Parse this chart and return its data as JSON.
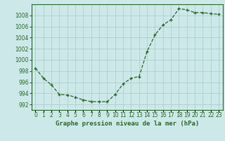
{
  "hours": [
    0,
    1,
    2,
    3,
    4,
    5,
    6,
    7,
    8,
    9,
    10,
    11,
    12,
    13,
    14,
    15,
    16,
    17,
    18,
    19,
    20,
    21,
    22,
    23
  ],
  "pressure": [
    998.5,
    996.7,
    995.5,
    993.8,
    993.7,
    993.3,
    992.8,
    992.5,
    992.5,
    992.5,
    993.8,
    995.7,
    996.7,
    997.0,
    1001.5,
    1004.5,
    1006.3,
    1007.2,
    1009.2,
    1009.0,
    1008.5,
    1008.5,
    1008.3,
    1008.2
  ],
  "line_color": "#2d6a2d",
  "marker_color": "#2d6a2d",
  "bg_color": "#cce8e8",
  "grid_color": "#aacaca",
  "ylim": [
    991,
    1010
  ],
  "yticks": [
    992,
    994,
    996,
    998,
    1000,
    1002,
    1004,
    1006,
    1008
  ],
  "xlabel": "Graphe pression niveau de la mer (hPa)",
  "xlabel_fontsize": 6.5,
  "tick_fontsize": 5.5,
  "ytick_fontsize": 5.5
}
